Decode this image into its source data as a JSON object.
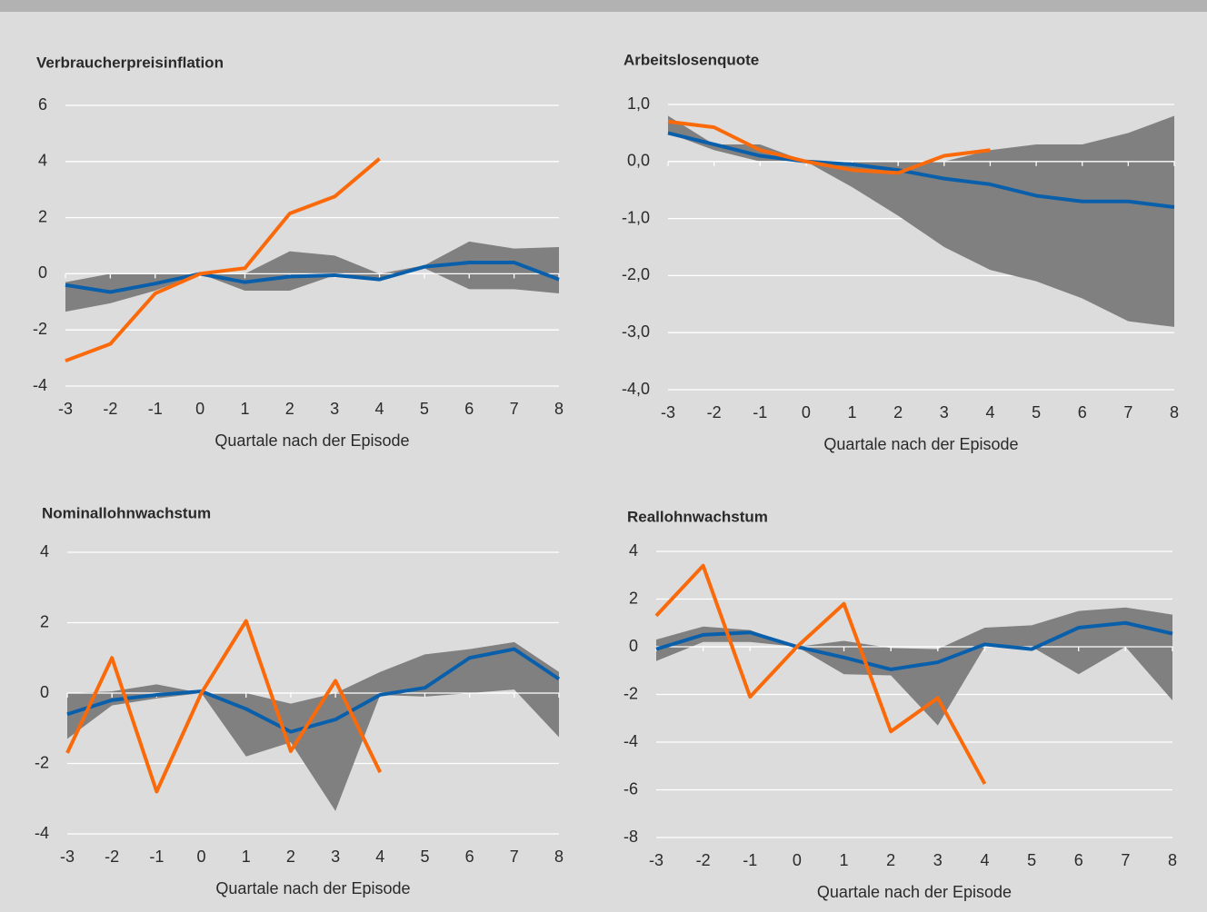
{
  "chart_data": [
    {
      "type": "line",
      "title": "Verbraucherpreisinflation",
      "x_label": "Quartale nach der Episode",
      "x": [
        -3,
        -2,
        -1,
        0,
        1,
        2,
        3,
        4,
        5,
        6,
        7,
        8
      ],
      "xlim": [
        -3,
        8
      ],
      "xticks": [
        -3,
        -2,
        -1,
        0,
        1,
        2,
        3,
        4,
        5,
        6,
        7,
        8
      ],
      "ylim": [
        -4,
        6
      ],
      "yticks": [
        -4,
        -2,
        0,
        2,
        4,
        6
      ],
      "grid": true,
      "band": {
        "color": "#808080",
        "upper": [
          -0.3,
          0,
          0,
          0,
          0,
          0.8,
          0.65,
          0,
          0.3,
          1.15,
          0.9,
          0.95
        ],
        "lower": [
          -1.35,
          -1.05,
          -0.6,
          0,
          -0.6,
          -0.6,
          -0.05,
          -0.2,
          0.2,
          -0.55,
          -0.55,
          -0.7
        ]
      },
      "series": [
        {
          "color": "#0a5fab",
          "values": [
            -0.4,
            -0.65,
            -0.35,
            0,
            -0.3,
            -0.1,
            -0.05,
            -0.2,
            0.25,
            0.4,
            0.4,
            -0.2
          ]
        },
        {
          "color": "#fa6a0a",
          "values": [
            -3.1,
            -2.5,
            -0.7,
            0,
            0.2,
            2.15,
            2.75,
            4.1,
            null,
            null,
            null,
            null
          ]
        }
      ]
    },
    {
      "type": "line",
      "title": "Arbeitslosenquote",
      "x_label": "Quartale nach der Episode",
      "x": [
        -3,
        -2,
        -1,
        0,
        1,
        2,
        3,
        4,
        5,
        6,
        7,
        8
      ],
      "xlim": [
        -3,
        8
      ],
      "xticks": [
        -3,
        -2,
        -1,
        0,
        1,
        2,
        3,
        4,
        5,
        6,
        7,
        8
      ],
      "ylim": [
        -4,
        1
      ],
      "yticks": [
        {
          "value": -4,
          "label": "-4,0"
        },
        {
          "value": -3,
          "label": "-3,0"
        },
        {
          "value": -2,
          "label": "-2,0"
        },
        {
          "value": -1,
          "label": "-1,0"
        },
        {
          "value": 0,
          "label": "0,0"
        },
        {
          "value": 1,
          "label": "1,0"
        }
      ],
      "grid": true,
      "band": {
        "color": "#808080",
        "upper": [
          0.8,
          0.3,
          0.3,
          0,
          0,
          0,
          0,
          0.2,
          0.3,
          0.3,
          0.5,
          0.8
        ],
        "lower": [
          0.5,
          0.2,
          0,
          0,
          -0.45,
          -0.95,
          -1.5,
          -1.9,
          -2.1,
          -2.4,
          -2.8,
          -2.9
        ]
      },
      "series": [
        {
          "color": "#0a5fab",
          "values": [
            0.5,
            0.3,
            0.1,
            0,
            -0.05,
            -0.15,
            -0.3,
            -0.4,
            -0.6,
            -0.7,
            -0.7,
            -0.8
          ]
        },
        {
          "color": "#fa6a0a",
          "values": [
            0.7,
            0.6,
            0.2,
            0,
            -0.15,
            -0.2,
            0.1,
            0.2,
            null,
            null,
            null,
            null
          ]
        }
      ]
    },
    {
      "type": "line",
      "title": "Nominallohnwachstum",
      "x_label": "Quartale nach der Episode",
      "x": [
        -3,
        -2,
        -1,
        0,
        1,
        2,
        3,
        4,
        5,
        6,
        7,
        8
      ],
      "xlim": [
        -3,
        8
      ],
      "xticks": [
        -3,
        -2,
        -1,
        0,
        1,
        2,
        3,
        4,
        5,
        6,
        7,
        8
      ],
      "ylim": [
        -4,
        4
      ],
      "yticks": [
        -4,
        -2,
        0,
        2,
        4
      ],
      "grid": true,
      "band": {
        "color": "#808080",
        "upper": [
          0,
          0.05,
          0.25,
          0,
          0,
          -0.3,
          0,
          0.6,
          1.1,
          1.25,
          1.45,
          0.6
        ],
        "lower": [
          -1.3,
          -0.35,
          -0.15,
          0,
          -1.8,
          -1.4,
          -3.35,
          -0.05,
          -0.1,
          0,
          0.1,
          -1.25
        ]
      },
      "series": [
        {
          "color": "#0a5fab",
          "values": [
            -0.6,
            -0.2,
            -0.05,
            0.05,
            -0.45,
            -1.1,
            -0.75,
            -0.05,
            0.15,
            1.0,
            1.25,
            0.4
          ]
        },
        {
          "color": "#fa6a0a",
          "values": [
            -1.7,
            1.0,
            -2.8,
            0,
            2.05,
            -1.65,
            0.35,
            -2.25,
            null,
            null,
            null,
            null
          ]
        }
      ]
    },
    {
      "type": "line",
      "title": "Reallohnwachstum",
      "x_label": "Quartale nach der Episode",
      "x": [
        -3,
        -2,
        -1,
        0,
        1,
        2,
        3,
        4,
        5,
        6,
        7,
        8
      ],
      "xlim": [
        -3,
        8
      ],
      "xticks": [
        -3,
        -2,
        -1,
        0,
        1,
        2,
        3,
        4,
        5,
        6,
        7,
        8
      ],
      "ylim": [
        -8,
        4
      ],
      "yticks": [
        -8,
        -6,
        -4,
        -2,
        0,
        2,
        4
      ],
      "grid": true,
      "band": {
        "color": "#808080",
        "upper": [
          0.3,
          0.85,
          0.7,
          0,
          0.25,
          -0.05,
          -0.1,
          0.8,
          0.9,
          1.5,
          1.65,
          1.35
        ],
        "lower": [
          -0.6,
          0.2,
          0.2,
          0,
          -1.15,
          -1.2,
          -3.3,
          0,
          0,
          -1.15,
          0,
          -2.25
        ]
      },
      "series": [
        {
          "color": "#0a5fab",
          "values": [
            -0.1,
            0.5,
            0.6,
            0,
            -0.45,
            -0.95,
            -0.65,
            0.1,
            -0.1,
            0.8,
            1.0,
            0.55
          ]
        },
        {
          "color": "#fa6a0a",
          "values": [
            1.3,
            3.4,
            -2.1,
            0,
            1.8,
            -3.55,
            -2.15,
            -5.75,
            null,
            null,
            null,
            null
          ]
        }
      ]
    }
  ]
}
